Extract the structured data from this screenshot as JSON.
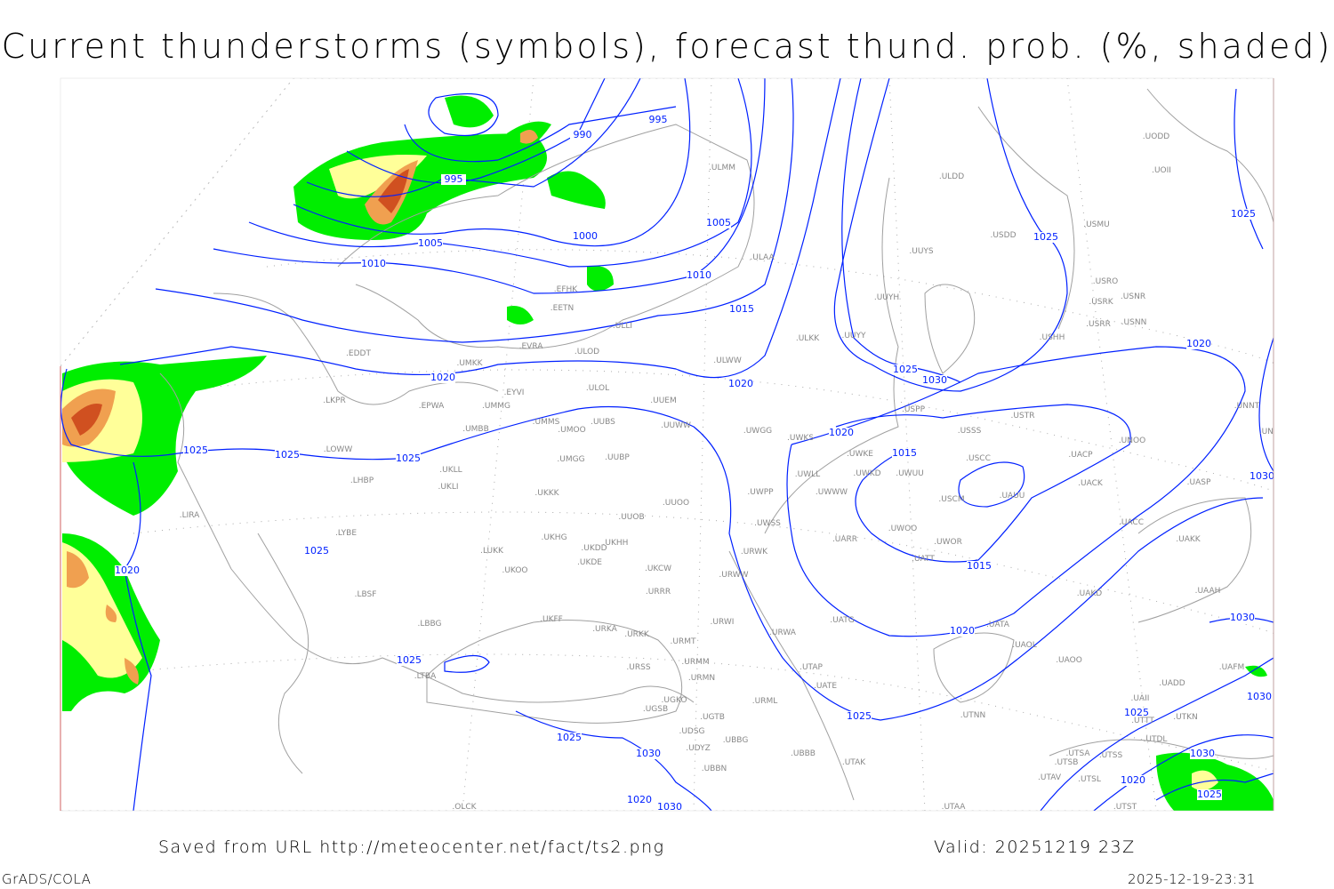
{
  "title": "Current thunderstorms (symbols), forecast thund. prob. (%, shaded)",
  "footer": {
    "saved": "Saved from URL http://meteocenter.net/fact/ts2.png",
    "valid": "Valid: 20251219 23Z",
    "software": "GrADS/COLA",
    "timestamp": "2025-12-19-23:31"
  },
  "colors": {
    "isobar": "#0020ff",
    "coastline": "#a0a0a0",
    "prob_low": "#00ee00",
    "prob_mid": "#ffff99",
    "prob_high": "#f0a050",
    "prob_max": "#d05020"
  },
  "isobar_labels": [
    "995",
    "990",
    "995",
    "1005",
    "1000",
    "1005",
    "1010",
    "1010",
    "1015",
    "1020",
    "1020",
    "1020",
    "1025",
    "1025",
    "1025",
    "1025",
    "1020",
    "1025",
    "1025",
    "1030",
    "1020",
    "1015",
    "1015",
    "1020",
    "1025",
    "1025",
    "1030",
    "1030",
    "1025",
    "1030",
    "1025",
    "1030",
    "1020",
    "1030",
    "1020",
    "1030",
    "1025",
    "1025"
  ],
  "stations": [
    "EFHK",
    "EETN",
    "EVRA",
    "ULOD",
    "ULLI",
    "ULAA",
    "ULMM",
    "ULDD",
    "UUYS",
    "UUYH",
    "UUYY",
    "ULKK",
    "ULWW",
    "UMKK",
    "EDDT",
    "EYVI",
    "UMMG",
    "ULOL",
    "UUEM",
    "EPWA",
    "LKPR",
    "UMMS",
    "UMOO",
    "UUBS",
    "UUWW",
    "UMBB",
    "UWGG",
    "UWKS",
    "UWKE",
    "USSS",
    "USTR",
    "USPP",
    "UNOO",
    "UNNT",
    "UNBB",
    "USCC",
    "UACP",
    "UWKD",
    "UWUU",
    "UWLL",
    "LOWW",
    "UMGG",
    "UUBP",
    "UKLL",
    "UKLI",
    "LHBP",
    "UKKK",
    "UUOO",
    "UWPP",
    "UWWW",
    "USCM",
    "UAUU",
    "UACK",
    "UASP",
    "UUOB",
    "UWSS",
    "LIRA",
    "LYBE",
    "UKHG",
    "UKDD",
    "UKHH",
    "LUKK",
    "UKDE",
    "UKOO",
    "UKCW",
    "URWW",
    "UWOO",
    "UWOR",
    "UARR",
    "UATT",
    "UACC",
    "UAKK",
    "URWK",
    "LBSF",
    "URRR",
    "UAKD",
    "UAAH",
    "UKFF",
    "LBBG",
    "URWI",
    "UATG",
    "UATA",
    "UAOL",
    "URKA",
    "URKK",
    "URMT",
    "URMM",
    "URSS",
    "URMN",
    "URWA",
    "UTAP",
    "UATE",
    "UAOO",
    "LTBA",
    "UGKO",
    "URML",
    "UGSB",
    "UGTB",
    "UTNN",
    "UDSG",
    "UBBG",
    "UDYZ",
    "UBBB",
    "UTAK",
    "UBBN",
    "UTSA",
    "UTSB",
    "UTSS",
    "UTDL",
    "UTAV",
    "UTSL",
    "UTTT",
    "UTKN",
    "UAII",
    "UADD",
    "UAFM",
    "OLCK",
    "UTAA",
    "UTST",
    "UOII",
    "UODD",
    "USDD",
    "USMU",
    "USRO",
    "USRK",
    "USNR",
    "USRR",
    "USNN",
    "USHH"
  ]
}
